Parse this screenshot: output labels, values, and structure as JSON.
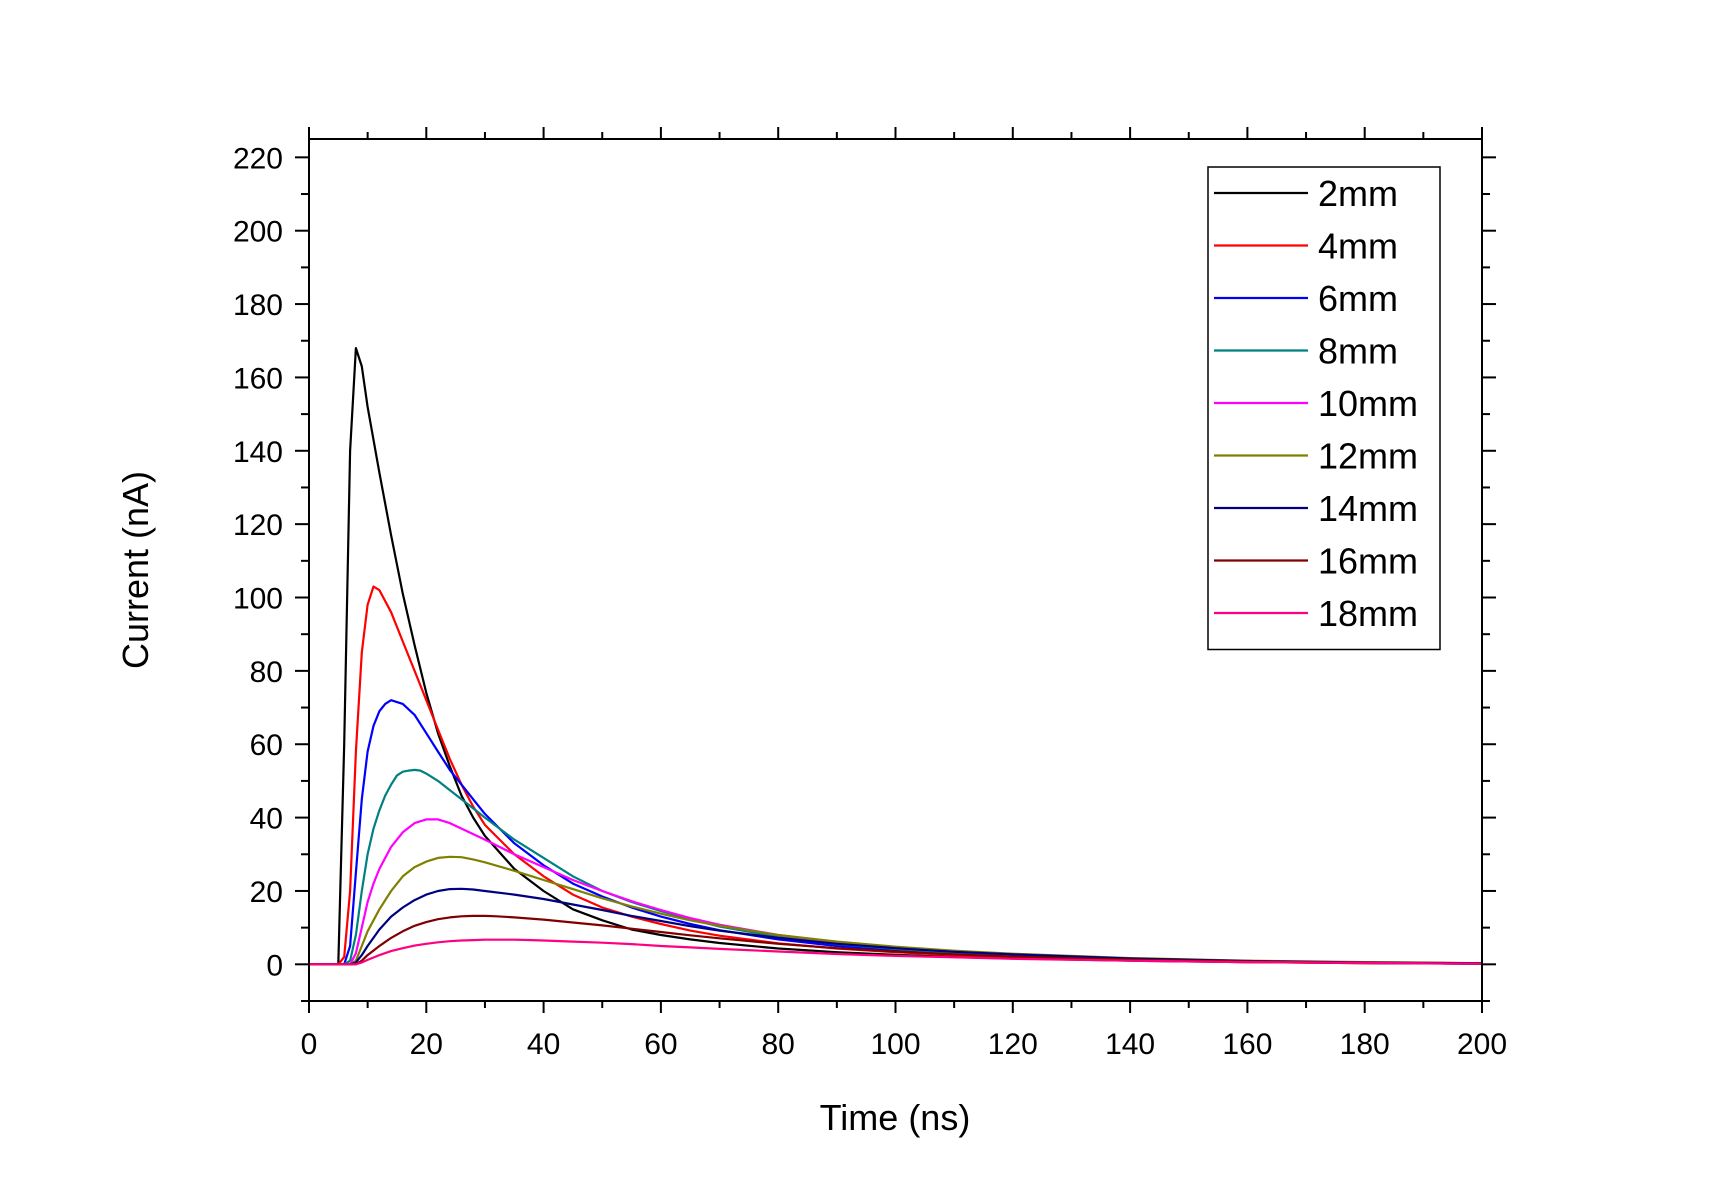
{
  "chart_data": {
    "type": "line",
    "title": "",
    "xlabel": "Time (ns)",
    "ylabel": "Current (nA)",
    "xlim": [
      0,
      200
    ],
    "ylim": [
      -10,
      225
    ],
    "xticks": [
      0,
      20,
      40,
      60,
      80,
      100,
      120,
      140,
      160,
      180,
      200
    ],
    "yticks": [
      0,
      20,
      40,
      60,
      80,
      100,
      120,
      140,
      160,
      180,
      200,
      220
    ],
    "grid": false,
    "legend_position": "top-right",
    "series": [
      {
        "name": "2mm",
        "color": "#000000",
        "x": [
          0,
          5,
          6,
          7,
          8,
          9,
          10,
          12,
          14,
          16,
          18,
          20,
          22,
          24,
          26,
          28,
          30,
          35,
          40,
          45,
          50,
          55,
          60,
          65,
          70,
          80,
          90,
          100,
          110,
          120,
          140,
          160,
          180,
          200
        ],
        "y": [
          0,
          0,
          60,
          140,
          168,
          163,
          152,
          134,
          117,
          101,
          87,
          74,
          63,
          54,
          46,
          40,
          35,
          26,
          20,
          15,
          12,
          9.5,
          8,
          6.8,
          5.8,
          4.3,
          3.3,
          2.6,
          2,
          1.6,
          1,
          0.6,
          0.3,
          0.2
        ]
      },
      {
        "name": "4mm",
        "color": "#ff0000",
        "x": [
          0,
          5,
          6,
          7,
          8,
          9,
          10,
          11,
          12,
          14,
          16,
          18,
          20,
          22,
          24,
          26,
          28,
          30,
          35,
          40,
          45,
          50,
          55,
          60,
          65,
          70,
          80,
          90,
          100,
          110,
          120,
          140,
          160,
          180,
          200
        ],
        "y": [
          0,
          0,
          2,
          20,
          58,
          85,
          98,
          103,
          102,
          96,
          88,
          80,
          72,
          64,
          56,
          49,
          43,
          38,
          30,
          24,
          19,
          15.5,
          13,
          11,
          9.2,
          7.8,
          5.7,
          4.3,
          3.3,
          2.5,
          1.9,
          1.1,
          0.6,
          0.3,
          0.2
        ]
      },
      {
        "name": "6mm",
        "color": "#0000ff",
        "x": [
          0,
          5,
          6,
          7,
          8,
          9,
          10,
          11,
          12,
          13,
          14,
          16,
          18,
          20,
          22,
          24,
          26,
          28,
          30,
          35,
          40,
          45,
          50,
          55,
          60,
          65,
          70,
          80,
          90,
          100,
          110,
          120,
          140,
          160,
          180,
          200
        ],
        "y": [
          0,
          0,
          0,
          5,
          25,
          45,
          58,
          65,
          69,
          71,
          72,
          71,
          68,
          63,
          58,
          53,
          49,
          45,
          41,
          33,
          27,
          22,
          18.5,
          15.5,
          13,
          11,
          9.3,
          6.8,
          5,
          3.8,
          2.9,
          2.2,
          1.3,
          0.7,
          0.4,
          0.2
        ]
      },
      {
        "name": "8mm",
        "color": "#008080",
        "x": [
          0,
          5,
          6,
          7,
          8,
          9,
          10,
          11,
          12,
          13,
          14,
          15,
          16,
          17,
          18,
          19,
          20,
          22,
          24,
          26,
          28,
          30,
          35,
          40,
          45,
          50,
          55,
          60,
          65,
          70,
          80,
          90,
          100,
          110,
          120,
          140,
          160,
          180,
          200
        ],
        "y": [
          0,
          0,
          0,
          1,
          8,
          20,
          30,
          37,
          42,
          46,
          49,
          51.5,
          52.5,
          52.8,
          53,
          52.8,
          52,
          50,
          47.5,
          45,
          42.5,
          40,
          34,
          29,
          24,
          20,
          17,
          14.5,
          12.3,
          10.3,
          7.5,
          5.5,
          4.2,
          3.2,
          2.4,
          1.4,
          0.8,
          0.4,
          0.2
        ]
      },
      {
        "name": "10mm",
        "color": "#ff00ff",
        "x": [
          0,
          5,
          6,
          7,
          8,
          9,
          10,
          11,
          12,
          14,
          16,
          18,
          20,
          22,
          24,
          26,
          28,
          30,
          35,
          40,
          45,
          50,
          55,
          60,
          65,
          70,
          80,
          90,
          100,
          110,
          120,
          140,
          160,
          180,
          200
        ],
        "y": [
          0,
          0,
          0,
          0,
          3,
          10,
          17,
          22,
          26,
          32,
          36,
          38.5,
          39.5,
          39.5,
          38.5,
          37,
          35.5,
          34,
          30,
          26.5,
          23,
          20,
          17.2,
          14.8,
          12.6,
          10.8,
          8,
          6,
          4.6,
          3.5,
          2.7,
          1.5,
          0.9,
          0.5,
          0.3
        ]
      },
      {
        "name": "12mm",
        "color": "#808000",
        "x": [
          0,
          5,
          7,
          8,
          9,
          10,
          12,
          14,
          16,
          18,
          20,
          22,
          24,
          26,
          28,
          30,
          35,
          40,
          45,
          50,
          55,
          60,
          65,
          70,
          80,
          90,
          100,
          110,
          120,
          140,
          160,
          180,
          200
        ],
        "y": [
          0,
          0,
          0,
          1,
          5,
          9,
          15,
          20,
          24,
          26.5,
          28,
          29,
          29.3,
          29.2,
          28.6,
          27.8,
          25.5,
          23,
          20.5,
          18,
          15.8,
          13.8,
          12,
          10.5,
          8,
          6.2,
          4.8,
          3.7,
          2.9,
          1.7,
          1,
          0.6,
          0.3
        ]
      },
      {
        "name": "14mm",
        "color": "#000080",
        "x": [
          0,
          5,
          7,
          8,
          9,
          10,
          12,
          14,
          16,
          18,
          20,
          22,
          24,
          26,
          28,
          30,
          35,
          40,
          45,
          50,
          55,
          60,
          65,
          70,
          80,
          90,
          100,
          110,
          120,
          140,
          160,
          180,
          200
        ],
        "y": [
          0,
          0,
          0,
          0.5,
          2.5,
          5,
          9.5,
          13,
          15.5,
          17.5,
          19,
          20,
          20.5,
          20.6,
          20.4,
          20,
          19,
          17.8,
          16.3,
          14.8,
          13.2,
          11.8,
          10.4,
          9.2,
          7.2,
          5.6,
          4.4,
          3.4,
          2.7,
          1.6,
          0.9,
          0.5,
          0.3
        ]
      },
      {
        "name": "16mm",
        "color": "#800000",
        "x": [
          0,
          5,
          8,
          9,
          10,
          12,
          14,
          16,
          18,
          20,
          22,
          24,
          26,
          28,
          30,
          32,
          35,
          40,
          45,
          50,
          55,
          60,
          65,
          70,
          80,
          90,
          100,
          110,
          120,
          140,
          160,
          180,
          200
        ],
        "y": [
          0,
          0,
          0,
          1,
          2.5,
          5,
          7.2,
          9,
          10.5,
          11.5,
          12.3,
          12.8,
          13.1,
          13.2,
          13.2,
          13.1,
          12.8,
          12.2,
          11.4,
          10.6,
          9.7,
          8.8,
          7.9,
          7.1,
          5.6,
          4.4,
          3.5,
          2.7,
          2.1,
          1.3,
          0.8,
          0.4,
          0.2
        ]
      },
      {
        "name": "18mm",
        "color": "#ff0080",
        "x": [
          0,
          5,
          8,
          9,
          10,
          12,
          14,
          16,
          18,
          20,
          22,
          24,
          26,
          28,
          30,
          32,
          35,
          38,
          40,
          45,
          50,
          55,
          60,
          65,
          70,
          80,
          90,
          100,
          110,
          120,
          140,
          160,
          180,
          200
        ],
        "y": [
          0,
          0,
          0,
          0.5,
          1.2,
          2.5,
          3.6,
          4.4,
          5.1,
          5.6,
          6,
          6.3,
          6.5,
          6.6,
          6.7,
          6.7,
          6.7,
          6.6,
          6.5,
          6.2,
          5.9,
          5.5,
          5,
          4.6,
          4.2,
          3.5,
          2.8,
          2.3,
          1.9,
          1.5,
          1,
          0.6,
          0.4,
          0.2
        ]
      }
    ]
  }
}
